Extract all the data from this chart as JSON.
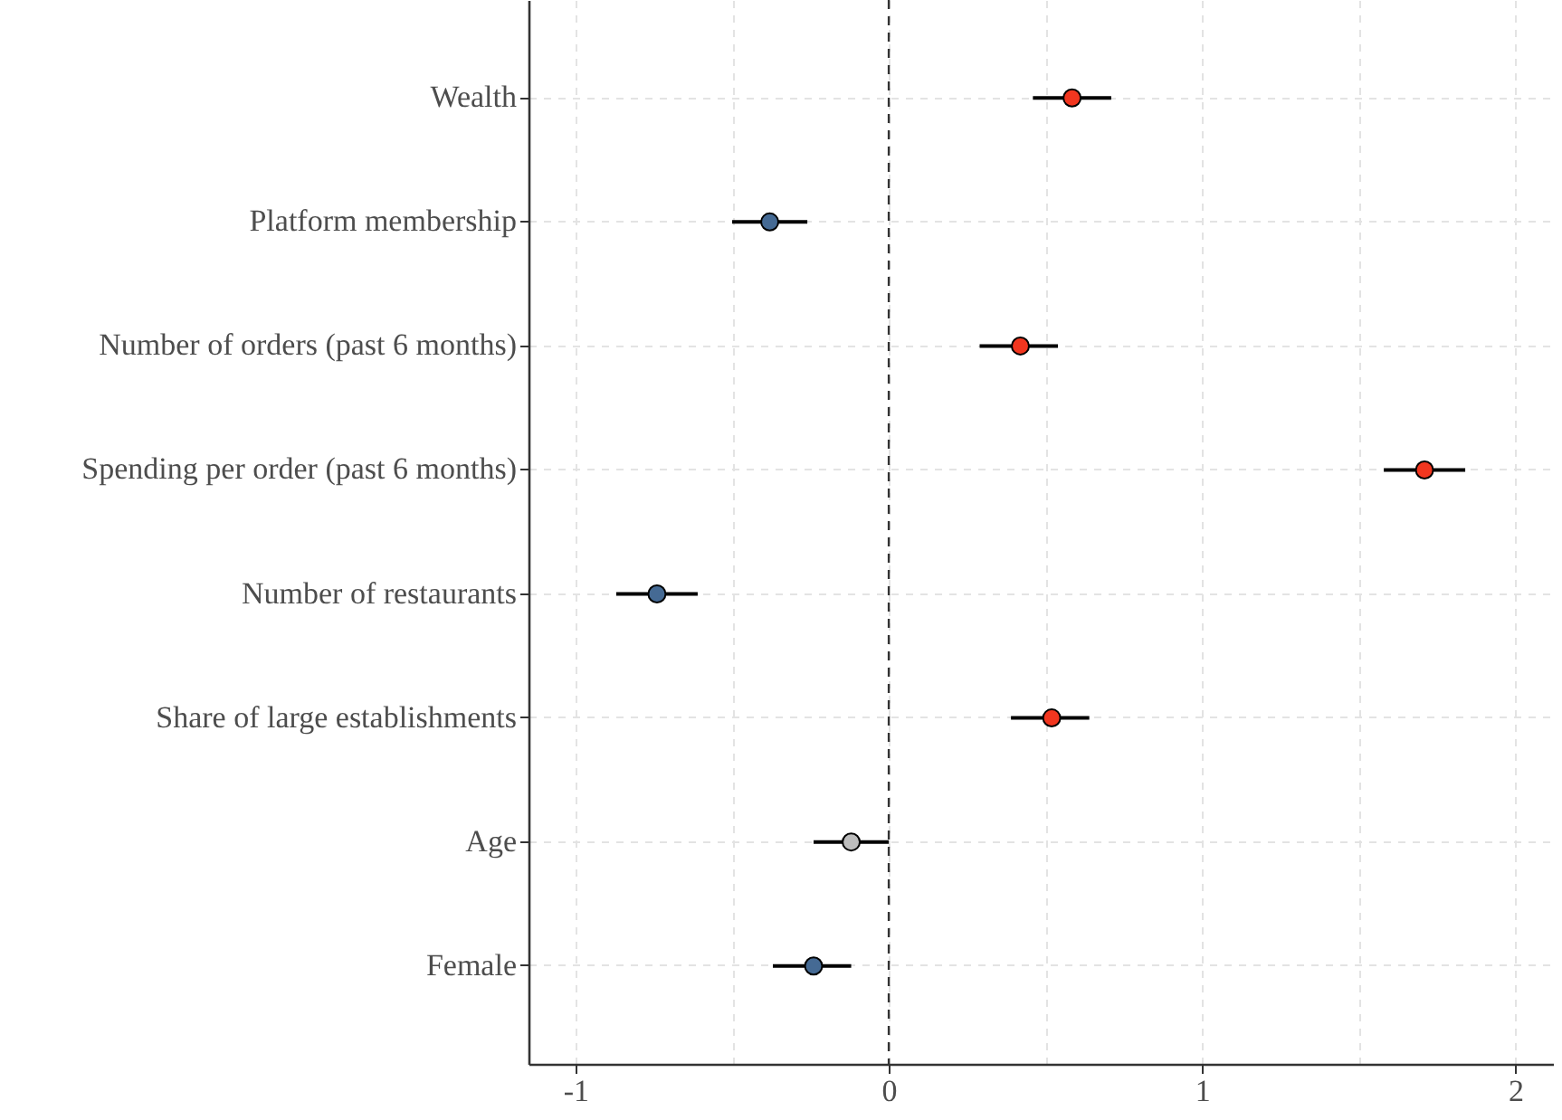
{
  "chart_data": {
    "type": "scatter",
    "orientation": "horizontal",
    "categories": [
      "Wealth",
      "Platform membership",
      "Number of orders (past 6 months)",
      "Spending per order (past 6 months)",
      "Number of restaurants",
      "Share of large establishments",
      "Age",
      "Female"
    ],
    "values": [
      0.585,
      -0.38,
      0.42,
      1.71,
      -0.74,
      0.52,
      -0.12,
      -0.24
    ],
    "errors": [
      [
        0.46,
        0.71
      ],
      [
        -0.5,
        -0.26
      ],
      [
        0.29,
        0.54
      ],
      [
        1.58,
        1.84
      ],
      [
        -0.87,
        -0.61
      ],
      [
        0.39,
        0.64
      ],
      [
        -0.24,
        0.0
      ],
      [
        -0.37,
        -0.12
      ]
    ],
    "colors": [
      "#f2361f",
      "#456a94",
      "#f2361f",
      "#f2361f",
      "#456a94",
      "#f2361f",
      "#bdbdbd",
      "#456a94"
    ],
    "xlim": [
      -1.15,
      2.12
    ],
    "xticks": [
      -1,
      {
        "value": -0.5,
        "label": null
      },
      0,
      {
        "value": 0.5,
        "label": null
      },
      1,
      {
        "value": 1.5,
        "label": null
      },
      2
    ],
    "ref_lines": [
      {
        "axis": "x",
        "value": 0,
        "line_style": "dashed",
        "color": "#333333"
      }
    ],
    "grid": true,
    "marker": "circle"
  }
}
